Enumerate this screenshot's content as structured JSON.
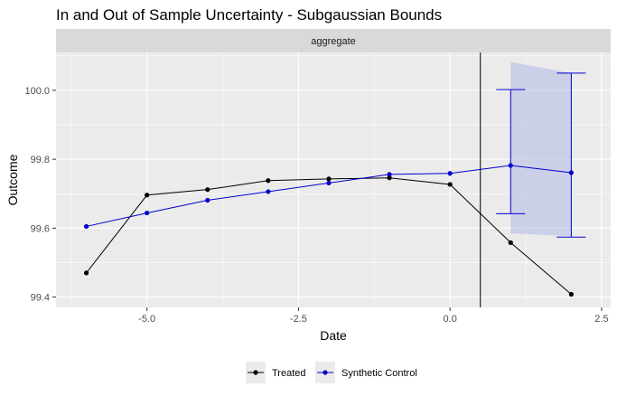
{
  "chart_data": {
    "type": "line",
    "title": "In and Out of Sample Uncertainty - Subgaussian Bounds",
    "facet_label": "aggregate",
    "xlabel": "Date",
    "ylabel": "Outcome",
    "xlim": [
      -6.5,
      2.65
    ],
    "ylim": [
      99.37,
      100.11
    ],
    "x_ticks": [
      -5.0,
      -2.5,
      0.0,
      2.5
    ],
    "x_tick_labels": [
      "-5.0",
      "-2.5",
      "0.0",
      "2.5"
    ],
    "y_ticks": [
      99.4,
      99.6,
      99.8,
      100.0
    ],
    "y_tick_labels": [
      "99.4",
      "99.6",
      "99.8",
      "100.0"
    ],
    "treatment_line_x": 0.5,
    "legend_position": "bottom",
    "series": [
      {
        "name": "Treated",
        "color": "#000000",
        "x": [
          -6,
          -5,
          -4,
          -3,
          -2,
          -1,
          0,
          1,
          2
        ],
        "values": [
          99.47,
          99.696,
          99.712,
          99.738,
          99.743,
          99.746,
          99.727,
          99.558,
          99.408
        ]
      },
      {
        "name": "Synthetic Control",
        "color": "#0000cd",
        "x": [
          -6,
          -5,
          -4,
          -3,
          -2,
          -1,
          0,
          1,
          2
        ],
        "values": [
          99.605,
          99.644,
          99.681,
          99.706,
          99.731,
          99.756,
          99.759,
          99.782,
          99.761
        ]
      }
    ],
    "error_bars": {
      "color": "#0000cd",
      "x": [
        1,
        2
      ],
      "lower": [
        99.642,
        99.574
      ],
      "upper": [
        100.002,
        100.05
      ]
    },
    "ribbon": {
      "color": "#b8bce6",
      "x": [
        1,
        2
      ],
      "lower": [
        99.585,
        99.577
      ],
      "upper": [
        100.082,
        100.05
      ]
    }
  }
}
